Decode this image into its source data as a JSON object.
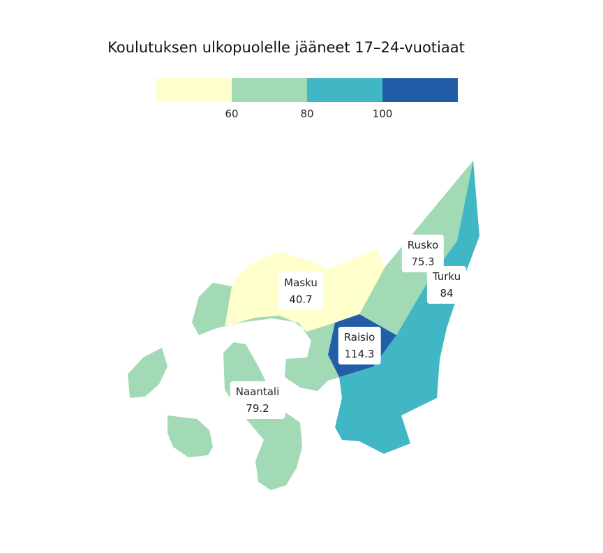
{
  "title": "Koulutuksen ulkopuolelle jääneet 17–24-vuotiaat",
  "legend": {
    "colors": [
      "#ffffcc",
      "#a1dab4",
      "#41b6c4",
      "#225ea8"
    ],
    "ticks": [
      "60",
      "80",
      "100"
    ]
  },
  "chart_data": {
    "type": "choropleth",
    "title": "Koulutuksen ulkopuolelle jääneet 17–24-vuotiaat",
    "bins": [
      60,
      80,
      100
    ],
    "regions": [
      {
        "name": "Masku",
        "value": "40.7",
        "color": "#ffffcc"
      },
      {
        "name": "Rusko",
        "value": "75.3",
        "color": "#a1dab4"
      },
      {
        "name": "Turku",
        "value": "84",
        "color": "#41b6c4"
      },
      {
        "name": "Raisio",
        "value": "114.3",
        "color": "#225ea8"
      },
      {
        "name": "Naantali",
        "value": "79.2",
        "color": "#a1dab4"
      }
    ]
  }
}
